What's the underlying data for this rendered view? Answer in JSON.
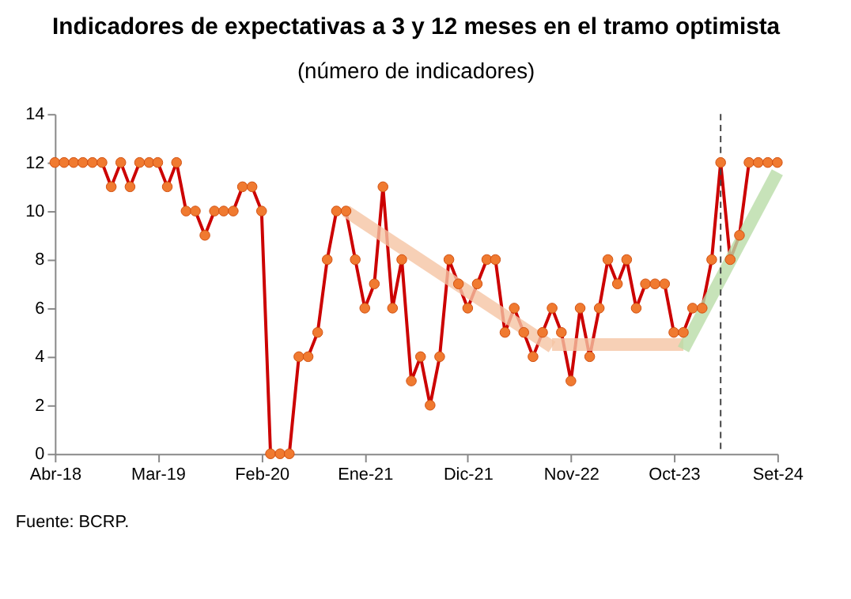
{
  "chart_data": {
    "type": "line",
    "title": "Indicadores de expectativas a 3 y 12 meses en el tramo optimista",
    "subtitle": "(número de indicadores)",
    "annotations": [
      "Fuente: BCRP."
    ],
    "x": [
      "2018-04",
      "2018-05",
      "2018-06",
      "2018-07",
      "2018-08",
      "2018-09",
      "2018-10",
      "2018-11",
      "2018-12",
      "2019-01",
      "2019-02",
      "2019-03",
      "2019-04",
      "2019-05",
      "2019-06",
      "2019-07",
      "2019-08",
      "2019-09",
      "2019-10",
      "2019-11",
      "2019-12",
      "2020-01",
      "2020-02",
      "2020-03",
      "2020-04",
      "2020-05",
      "2020-06",
      "2020-07",
      "2020-08",
      "2020-09",
      "2020-10",
      "2020-11",
      "2020-12",
      "2021-01",
      "2021-02",
      "2021-03",
      "2021-04",
      "2021-05",
      "2021-06",
      "2021-07",
      "2021-08",
      "2021-09",
      "2021-10",
      "2021-11",
      "2021-12",
      "2022-01",
      "2022-02",
      "2022-03",
      "2022-04",
      "2022-05",
      "2022-06",
      "2022-07",
      "2022-08",
      "2022-09",
      "2022-10",
      "2022-11",
      "2022-12",
      "2023-01",
      "2023-02",
      "2023-03",
      "2023-04",
      "2023-05",
      "2023-06",
      "2023-07",
      "2023-08",
      "2023-09",
      "2023-10",
      "2023-11",
      "2023-12",
      "2024-01",
      "2024-02",
      "2024-03",
      "2024-04",
      "2024-05",
      "2024-06",
      "2024-07",
      "2024-08",
      "2024-09"
    ],
    "series": [
      {
        "color": "#cc0000",
        "marker": "circle",
        "values": [
          12,
          12,
          12,
          12,
          12,
          12,
          11,
          12,
          11,
          12,
          12,
          12,
          11,
          12,
          10,
          10,
          9,
          10,
          10,
          10,
          11,
          11,
          10,
          0,
          0,
          0,
          4,
          4,
          5,
          8,
          10,
          10,
          8,
          6,
          7,
          11,
          6,
          8,
          3,
          4,
          2,
          4,
          8,
          7,
          6,
          7,
          8,
          8,
          5,
          6,
          5,
          4,
          5,
          6,
          5,
          3,
          6,
          4,
          6,
          8,
          7,
          8,
          6,
          7,
          7,
          7,
          5,
          5,
          6,
          6,
          8,
          12,
          8,
          9,
          12,
          12,
          12,
          12
        ]
      },
      {
        "type": "line",
        "color": "#f5c4a4",
        "x": [
          "2020-11",
          "2022-09"
        ],
        "values": [
          10,
          4.4
        ]
      },
      {
        "type": "line",
        "color": "#f5c4a4",
        "x": [
          "2022-09",
          "2023-11"
        ],
        "values": [
          4.5,
          4.5
        ]
      },
      {
        "type": "line",
        "color": "#b9dca7",
        "x": [
          "2023-11",
          "2024-09"
        ],
        "values": [
          4.3,
          11.6
        ]
      }
    ],
    "xlim": [
      "2018-04",
      "2024-09"
    ],
    "xticks": [
      {
        "value": "2018-04",
        "label": "Abr-18"
      },
      {
        "value": "2019-03",
        "label": "Mar-19"
      },
      {
        "value": "2020-02",
        "label": "Feb-20"
      },
      {
        "value": "2021-01",
        "label": "Ene-21"
      },
      {
        "value": "2021-12",
        "label": "Dic-21"
      },
      {
        "value": "2022-11",
        "label": "Nov-22"
      },
      {
        "value": "2023-10",
        "label": "Oct-23"
      },
      {
        "value": "2024-09",
        "label": "Set-24"
      }
    ],
    "ylim": [
      0,
      14
    ],
    "yticks": [
      0,
      2,
      4,
      6,
      8,
      10,
      12,
      14
    ],
    "ref_lines": [
      {
        "axis": "x",
        "value": "2024-03",
        "color": "#444444",
        "line_style": "dashed"
      }
    ],
    "grid": false
  }
}
